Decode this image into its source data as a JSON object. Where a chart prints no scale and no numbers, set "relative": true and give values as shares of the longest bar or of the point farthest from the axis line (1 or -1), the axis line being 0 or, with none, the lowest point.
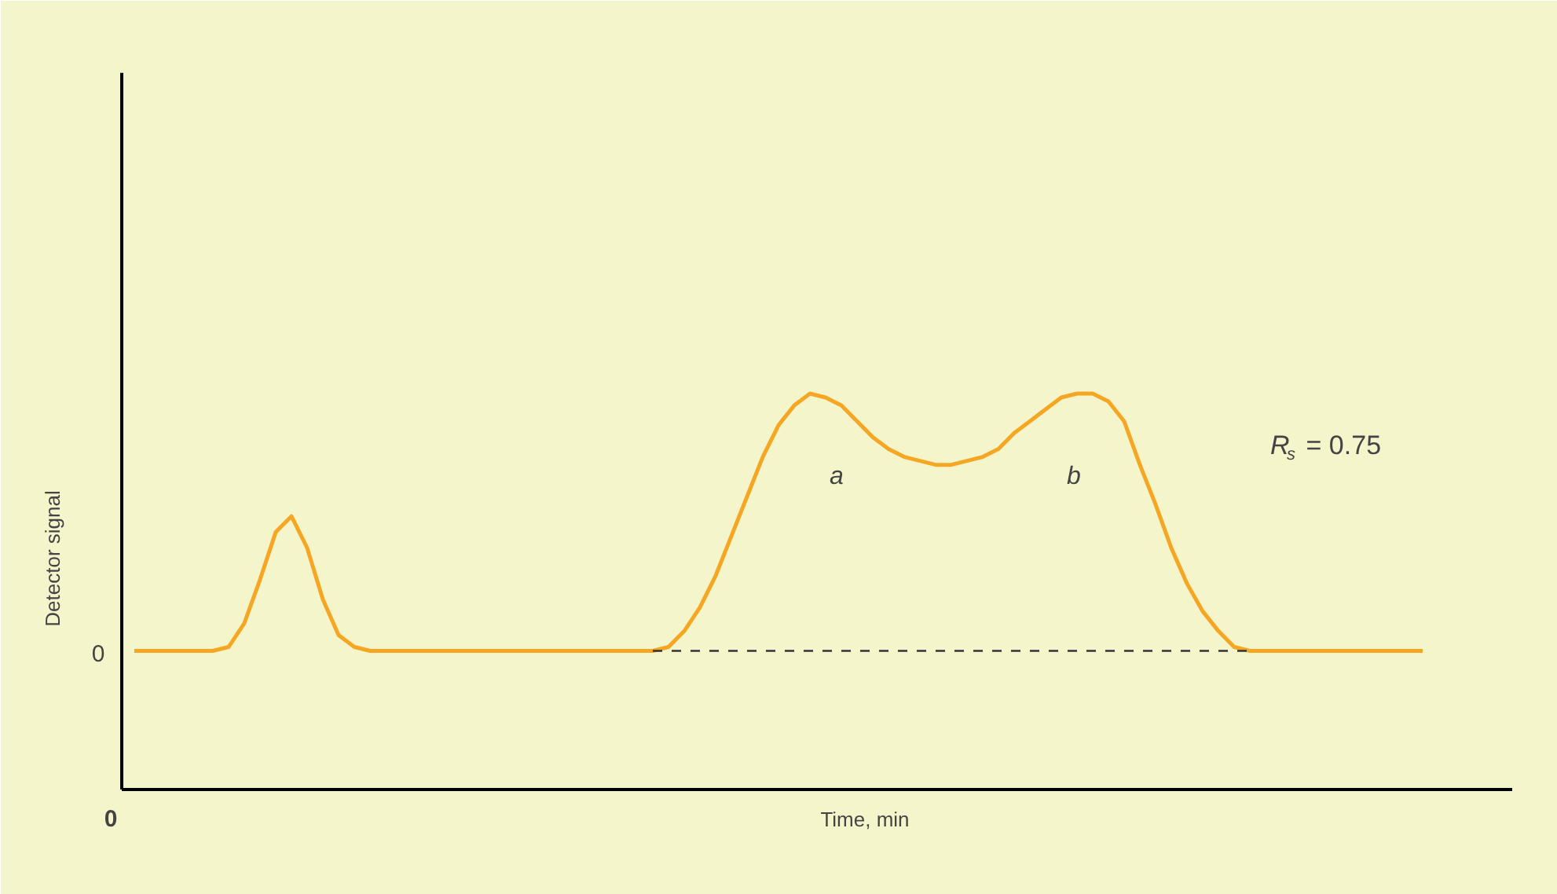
{
  "chart_data": {
    "type": "line",
    "relative": true,
    "xlabel": "Time, min",
    "ylabel": "Detector signal",
    "categories": [
      null,
      null,
      null,
      null,
      null,
      null,
      null,
      null,
      null,
      null,
      null,
      null,
      null,
      null,
      null,
      null,
      null,
      null,
      null,
      null,
      null,
      null,
      null,
      null,
      null,
      null,
      null,
      null,
      null,
      null,
      null,
      null,
      null,
      null,
      null,
      null,
      null,
      null,
      null,
      null,
      null,
      null,
      null,
      null,
      null,
      null,
      null,
      null,
      null,
      null,
      null,
      null,
      null,
      null,
      null,
      null,
      null,
      null,
      null,
      null,
      null,
      null,
      null,
      null,
      null,
      null,
      null,
      null,
      null,
      null,
      null,
      null,
      null,
      null,
      null,
      null,
      null,
      null,
      null,
      null,
      null,
      null,
      null
    ],
    "series": [
      {
        "color": "#f5a623",
        "values": [
          0.35,
          0.35,
          0.35,
          0.35,
          0.35,
          0.35,
          0.36,
          0.42,
          0.53,
          0.65,
          0.69,
          0.61,
          0.48,
          0.39,
          0.36,
          0.35,
          0.35,
          0.35,
          0.35,
          0.35,
          0.35,
          0.35,
          0.35,
          0.35,
          0.35,
          0.35,
          0.35,
          0.35,
          0.35,
          0.35,
          0.35,
          0.35,
          0.35,
          0.35,
          0.36,
          0.4,
          0.46,
          0.54,
          0.64,
          0.74,
          0.84,
          0.92,
          0.97,
          1.0,
          0.99,
          0.97,
          0.93,
          0.89,
          0.86,
          0.84,
          0.83,
          0.82,
          0.82,
          0.83,
          0.84,
          0.86,
          0.9,
          0.93,
          0.96,
          0.99,
          1.0,
          1.0,
          0.98,
          0.93,
          0.82,
          0.72,
          0.61,
          0.52,
          0.45,
          0.4,
          0.36,
          0.35,
          0.35,
          0.35,
          0.35,
          0.35,
          0.35,
          0.35,
          0.35,
          0.35,
          0.35,
          0.35,
          0.35
        ]
      }
    ],
    "ref_lines": [
      {
        "axis": "y",
        "value": 0.35,
        "color": "#333333",
        "line_style": "dashed"
      }
    ],
    "line_style": "solid",
    "marker": "none",
    "grid": false,
    "annotations": [
      "0",
      "0",
      "a",
      "b",
      "R$_{s}$ = 0.75"
    ]
  }
}
